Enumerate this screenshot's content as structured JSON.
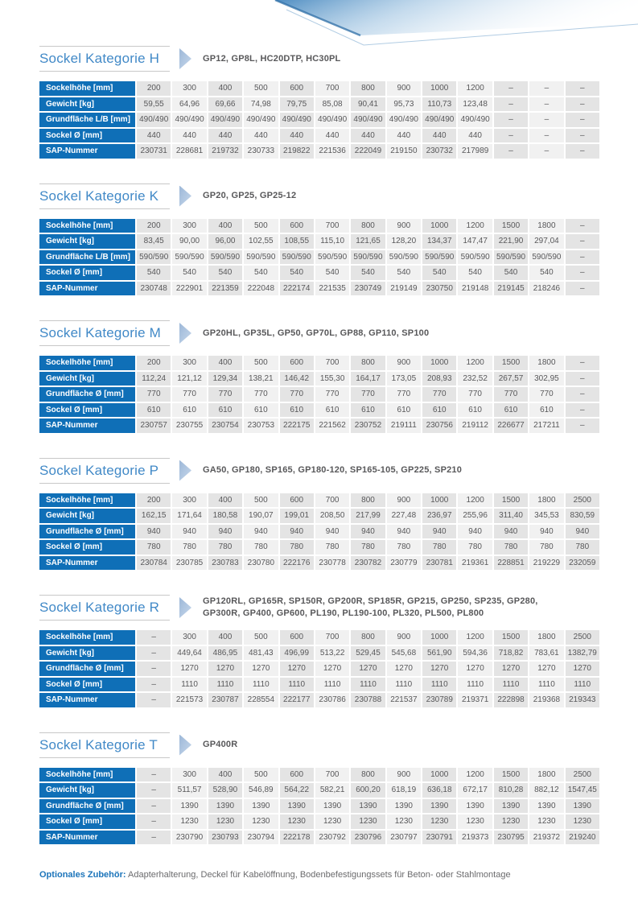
{
  "meta": {
    "accent_blue": "#0f6fb7",
    "heading_blue": "#4189c7",
    "cell_dark": "#e4e4e4",
    "cell_light": "#f1f1f1",
    "text_gray": "#58585a"
  },
  "sections": [
    {
      "id": "h",
      "title": "Sockel Kategorie H",
      "products": [
        "GP12, GP8L, HC20DTP, HC30PL"
      ],
      "rows": [
        {
          "label": "Sockelhöhe [mm]",
          "values": [
            "200",
            "300",
            "400",
            "500",
            "600",
            "700",
            "800",
            "900",
            "1000",
            "1200",
            "–",
            "–",
            "–"
          ]
        },
        {
          "label": "Gewicht [kg]",
          "values": [
            "59,55",
            "64,96",
            "69,66",
            "74,98",
            "79,75",
            "85,08",
            "90,41",
            "95,73",
            "110,73",
            "123,48",
            "–",
            "–",
            "–"
          ]
        },
        {
          "label": "Grundfläche L/B [mm]",
          "values": [
            "490/490",
            "490/490",
            "490/490",
            "490/490",
            "490/490",
            "490/490",
            "490/490",
            "490/490",
            "490/490",
            "490/490",
            "–",
            "–",
            "–"
          ]
        },
        {
          "label": "Sockel Ø [mm]",
          "values": [
            "440",
            "440",
            "440",
            "440",
            "440",
            "440",
            "440",
            "440",
            "440",
            "440",
            "–",
            "–",
            "–"
          ]
        },
        {
          "label": "SAP-Nummer",
          "values": [
            "230731",
            "228681",
            "219732",
            "230733",
            "219822",
            "221536",
            "222049",
            "219150",
            "230732",
            "217989",
            "–",
            "–",
            "–"
          ]
        }
      ]
    },
    {
      "id": "k",
      "title": "Sockel Kategorie K",
      "products": [
        "GP20, GP25, GP25-12"
      ],
      "rows": [
        {
          "label": "Sockelhöhe [mm]",
          "values": [
            "200",
            "300",
            "400",
            "500",
            "600",
            "700",
            "800",
            "900",
            "1000",
            "1200",
            "1500",
            "1800",
            "–"
          ]
        },
        {
          "label": "Gewicht [kg]",
          "values": [
            "83,45",
            "90,00",
            "96,00",
            "102,55",
            "108,55",
            "115,10",
            "121,65",
            "128,20",
            "134,37",
            "147,47",
            "221,90",
            "297,04",
            "–"
          ]
        },
        {
          "label": "Grundfläche L/B [mm]",
          "values": [
            "590/590",
            "590/590",
            "590/590",
            "590/590",
            "590/590",
            "590/590",
            "590/590",
            "590/590",
            "590/590",
            "590/590",
            "590/590",
            "590/590",
            "–"
          ]
        },
        {
          "label": "Sockel Ø [mm]",
          "values": [
            "540",
            "540",
            "540",
            "540",
            "540",
            "540",
            "540",
            "540",
            "540",
            "540",
            "540",
            "540",
            "–"
          ]
        },
        {
          "label": "SAP-Nummer",
          "values": [
            "230748",
            "222901",
            "221359",
            "222048",
            "222174",
            "221535",
            "230749",
            "219149",
            "230750",
            "219148",
            "219145",
            "218246",
            "–"
          ]
        }
      ]
    },
    {
      "id": "m",
      "title": "Sockel Kategorie M",
      "products": [
        "GP20HL, GP35L, GP50, GP70L, GP88, GP110, SP100"
      ],
      "rows": [
        {
          "label": "Sockelhöhe [mm]",
          "values": [
            "200",
            "300",
            "400",
            "500",
            "600",
            "700",
            "800",
            "900",
            "1000",
            "1200",
            "1500",
            "1800",
            "–"
          ]
        },
        {
          "label": "Gewicht [kg]",
          "values": [
            "112,24",
            "121,12",
            "129,34",
            "138,21",
            "146,42",
            "155,30",
            "164,17",
            "173,05",
            "208,93",
            "232,52",
            "267,57",
            "302,95",
            "–"
          ]
        },
        {
          "label": "Grundfläche Ø [mm]",
          "values": [
            "770",
            "770",
            "770",
            "770",
            "770",
            "770",
            "770",
            "770",
            "770",
            "770",
            "770",
            "770",
            "–"
          ]
        },
        {
          "label": "Sockel Ø [mm]",
          "values": [
            "610",
            "610",
            "610",
            "610",
            "610",
            "610",
            "610",
            "610",
            "610",
            "610",
            "610",
            "610",
            "–"
          ]
        },
        {
          "label": "SAP-Nummer",
          "values": [
            "230757",
            "230755",
            "230754",
            "230753",
            "222175",
            "221562",
            "230752",
            "219111",
            "230756",
            "219112",
            "226677",
            "217211",
            "–"
          ]
        }
      ]
    },
    {
      "id": "p",
      "title": "Sockel Kategorie P",
      "products": [
        "GA50, GP180, SP165, GP180-120, SP165-105, GP225, SP210"
      ],
      "rows": [
        {
          "label": "Sockelhöhe [mm]",
          "values": [
            "200",
            "300",
            "400",
            "500",
            "600",
            "700",
            "800",
            "900",
            "1000",
            "1200",
            "1500",
            "1800",
            "2500"
          ]
        },
        {
          "label": "Gewicht [kg]",
          "values": [
            "162,15",
            "171,64",
            "180,58",
            "190,07",
            "199,01",
            "208,50",
            "217,99",
            "227,48",
            "236,97",
            "255,96",
            "311,40",
            "345,53",
            "830,59"
          ]
        },
        {
          "label": "Grundfläche Ø [mm]",
          "values": [
            "940",
            "940",
            "940",
            "940",
            "940",
            "940",
            "940",
            "940",
            "940",
            "940",
            "940",
            "940",
            "940"
          ]
        },
        {
          "label": "Sockel Ø [mm]",
          "values": [
            "780",
            "780",
            "780",
            "780",
            "780",
            "780",
            "780",
            "780",
            "780",
            "780",
            "780",
            "780",
            "780"
          ]
        },
        {
          "label": "SAP-Nummer",
          "values": [
            "230784",
            "230785",
            "230783",
            "230780",
            "222176",
            "230778",
            "230782",
            "230779",
            "230781",
            "219361",
            "228851",
            "219229",
            "232059"
          ]
        }
      ]
    },
    {
      "id": "r",
      "title": "Sockel Kategorie R",
      "products": [
        "GP120RL, GP165R, SP150R, GP200R, SP185R, GP215, GP250, SP235, GP280,",
        "GP300R, GP400, GP600, PL190, PL190-100, PL320, PL500, PL800"
      ],
      "rows": [
        {
          "label": "Sockelhöhe [mm]",
          "values": [
            "–",
            "300",
            "400",
            "500",
            "600",
            "700",
            "800",
            "900",
            "1000",
            "1200",
            "1500",
            "1800",
            "2500"
          ]
        },
        {
          "label": "Gewicht [kg]",
          "values": [
            "–",
            "449,64",
            "486,95",
            "481,43",
            "496,99",
            "513,22",
            "529,45",
            "545,68",
            "561,90",
            "594,36",
            "718,82",
            "783,61",
            "1382,79"
          ]
        },
        {
          "label": "Grundfläche Ø [mm]",
          "values": [
            "–",
            "1270",
            "1270",
            "1270",
            "1270",
            "1270",
            "1270",
            "1270",
            "1270",
            "1270",
            "1270",
            "1270",
            "1270"
          ]
        },
        {
          "label": "Sockel Ø [mm]",
          "values": [
            "–",
            "1110",
            "1110",
            "1110",
            "1110",
            "1110",
            "1110",
            "1110",
            "1110",
            "1110",
            "1110",
            "1110",
            "1110"
          ]
        },
        {
          "label": "SAP-Nummer",
          "values": [
            "–",
            "221573",
            "230787",
            "228554",
            "222177",
            "230786",
            "230788",
            "221537",
            "230789",
            "219371",
            "222898",
            "219368",
            "219343"
          ]
        }
      ]
    },
    {
      "id": "t",
      "title": "Sockel Kategorie T",
      "products": [
        "GP400R"
      ],
      "rows": [
        {
          "label": "Sockelhöhe [mm]",
          "values": [
            "–",
            "300",
            "400",
            "500",
            "600",
            "700",
            "800",
            "900",
            "1000",
            "1200",
            "1500",
            "1800",
            "2500"
          ]
        },
        {
          "label": "Gewicht [kg]",
          "values": [
            "–",
            "511,57",
            "528,90",
            "546,89",
            "564,22",
            "582,21",
            "600,20",
            "618,19",
            "636,18",
            "672,17",
            "810,28",
            "882,12",
            "1547,45"
          ]
        },
        {
          "label": "Grundfläche Ø [mm]",
          "values": [
            "–",
            "1390",
            "1390",
            "1390",
            "1390",
            "1390",
            "1390",
            "1390",
            "1390",
            "1390",
            "1390",
            "1390",
            "1390"
          ]
        },
        {
          "label": "Sockel Ø [mm]",
          "values": [
            "–",
            "1230",
            "1230",
            "1230",
            "1230",
            "1230",
            "1230",
            "1230",
            "1230",
            "1230",
            "1230",
            "1230",
            "1230"
          ]
        },
        {
          "label": "SAP-Nummer",
          "values": [
            "–",
            "230790",
            "230793",
            "230794",
            "222178",
            "230792",
            "230796",
            "230797",
            "230791",
            "219373",
            "230795",
            "219372",
            "219240"
          ]
        }
      ]
    }
  ],
  "footer": {
    "label": "Optionales Zubehör:",
    "text": "Adapterhalterung, Deckel für Kabelöffnung, Bodenbefestigungssets für Beton- oder Stahlmontage"
  }
}
